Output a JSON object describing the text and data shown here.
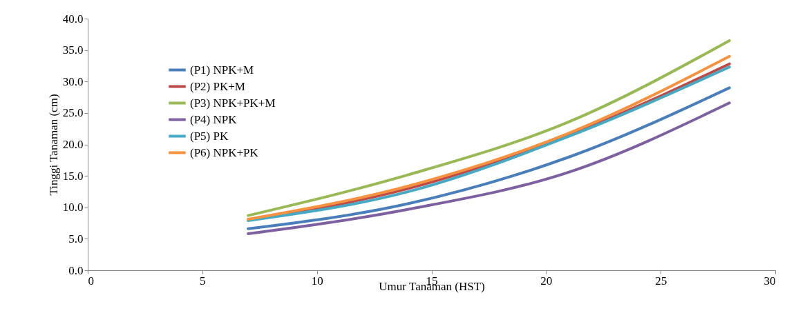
{
  "chart_data": {
    "type": "line",
    "xlabel": "Umur Tanaman (HST)",
    "ylabel": "Tinggi Tanaman (cm)",
    "x": [
      7,
      14,
      21,
      28
    ],
    "series": [
      {
        "name": "(P1) NPK+M",
        "color": "#4a7ebb",
        "values": [
          6.6,
          10.6,
          18.0,
          29.0
        ]
      },
      {
        "name": "(P2) PK+M",
        "color": "#be4b48",
        "values": [
          8.0,
          13.0,
          21.5,
          32.8
        ]
      },
      {
        "name": "(P3) NPK+PK+M",
        "color": "#98b954",
        "values": [
          8.7,
          15.2,
          23.6,
          36.5
        ]
      },
      {
        "name": "(P4) NPK",
        "color": "#7d60a0",
        "values": [
          5.8,
          9.7,
          15.6,
          26.6
        ]
      },
      {
        "name": "(P5) PK",
        "color": "#46aac5",
        "values": [
          7.9,
          12.5,
          21.3,
          32.3
        ]
      },
      {
        "name": "(P6) NPK+PK",
        "color": "#f69240",
        "values": [
          8.1,
          13.4,
          21.8,
          34.0
        ]
      }
    ],
    "xlim": [
      0,
      30
    ],
    "xticks": [
      0,
      5,
      10,
      15,
      20,
      25,
      30
    ],
    "ylim": [
      0,
      40
    ],
    "yticks": [
      {
        "value": 0,
        "label": "0.0"
      },
      {
        "value": 5,
        "label": "5.0"
      },
      {
        "value": 10,
        "label": "10.0"
      },
      {
        "value": 15,
        "label": "15.0"
      },
      {
        "value": 20,
        "label": "20.0"
      },
      {
        "value": 25,
        "label": "25.0"
      },
      {
        "value": 30,
        "label": "30.0"
      },
      {
        "value": 35,
        "label": "35.0"
      },
      {
        "value": 40,
        "label": "40.0"
      }
    ],
    "legend": "top left",
    "grid": false,
    "marker": "none",
    "line_style": "solid"
  }
}
